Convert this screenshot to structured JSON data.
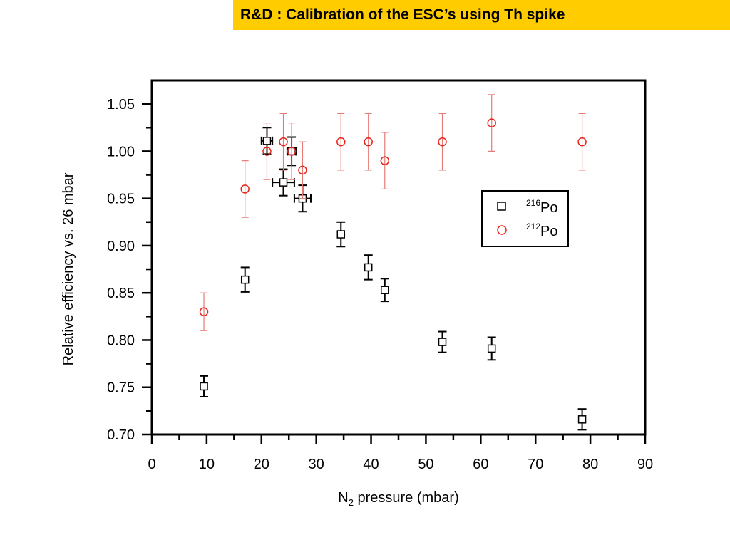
{
  "slide": {
    "title": "R&D : Calibration of the ESC’s using Th spike",
    "title_bg_color": "#ffcc00"
  },
  "chart_data": {
    "type": "scatter",
    "title": "",
    "xlabel": {
      "prefix": "N",
      "subscript": "2",
      "suffix": " pressure (mbar)"
    },
    "ylabel": "Relative efficiency vs. 26 mbar",
    "xlim": [
      0,
      90
    ],
    "ylim": [
      0.7,
      1.075
    ],
    "x_ticks": [
      0,
      10,
      20,
      30,
      40,
      50,
      60,
      70,
      80,
      90
    ],
    "x_tick_labels": [
      "0",
      "10",
      "20",
      "30",
      "40",
      "50",
      "60",
      "70",
      "80",
      "90"
    ],
    "y_ticks": [
      0.7,
      0.75,
      0.8,
      0.85,
      0.9,
      0.95,
      1.0,
      1.05
    ],
    "y_tick_labels": [
      "0.70",
      "0.75",
      "0.80",
      "0.85",
      "0.90",
      "0.95",
      "1.00",
      "1.05"
    ],
    "grid": false,
    "legend_position": "right",
    "series": [
      {
        "name": "216Po",
        "legend_sup": "216",
        "legend_text": "Po",
        "marker": "square",
        "color": "#000000",
        "error_color": "#000000",
        "points": [
          {
            "x": 9.5,
            "y": 0.751,
            "yerr": 0.011,
            "xerr": 0
          },
          {
            "x": 17.0,
            "y": 0.864,
            "yerr": 0.013,
            "xerr": 0
          },
          {
            "x": 21.0,
            "y": 1.011,
            "yerr": 0.014,
            "xerr": 1.0
          },
          {
            "x": 24.0,
            "y": 0.967,
            "yerr": 0.014,
            "xerr": 2.0
          },
          {
            "x": 25.5,
            "y": 1.0,
            "yerr": 0.015,
            "xerr": 0.8
          },
          {
            "x": 27.5,
            "y": 0.95,
            "yerr": 0.014,
            "xerr": 1.5
          },
          {
            "x": 34.5,
            "y": 0.912,
            "yerr": 0.013,
            "xerr": 0
          },
          {
            "x": 39.5,
            "y": 0.877,
            "yerr": 0.013,
            "xerr": 0
          },
          {
            "x": 42.5,
            "y": 0.853,
            "yerr": 0.012,
            "xerr": 0
          },
          {
            "x": 53.0,
            "y": 0.798,
            "yerr": 0.011,
            "xerr": 0
          },
          {
            "x": 62.0,
            "y": 0.791,
            "yerr": 0.012,
            "xerr": 0
          },
          {
            "x": 78.5,
            "y": 0.716,
            "yerr": 0.011,
            "xerr": 0
          }
        ]
      },
      {
        "name": "212Po",
        "legend_sup": "212",
        "legend_text": "Po",
        "marker": "circle",
        "color": "#e8241c",
        "error_color": "#e87a74",
        "points": [
          {
            "x": 9.5,
            "y": 0.83,
            "yerr": 0.02,
            "xerr": 0
          },
          {
            "x": 17.0,
            "y": 0.96,
            "yerr": 0.03,
            "xerr": 0
          },
          {
            "x": 21.0,
            "y": 1.0,
            "yerr": 0.03,
            "xerr": 0
          },
          {
            "x": 24.0,
            "y": 1.01,
            "yerr": 0.03,
            "xerr": 0
          },
          {
            "x": 25.5,
            "y": 1.0,
            "yerr": 0.03,
            "xerr": 0
          },
          {
            "x": 27.5,
            "y": 0.98,
            "yerr": 0.03,
            "xerr": 0
          },
          {
            "x": 34.5,
            "y": 1.01,
            "yerr": 0.03,
            "xerr": 0
          },
          {
            "x": 39.5,
            "y": 1.01,
            "yerr": 0.03,
            "xerr": 0
          },
          {
            "x": 42.5,
            "y": 0.99,
            "yerr": 0.03,
            "xerr": 0
          },
          {
            "x": 53.0,
            "y": 1.01,
            "yerr": 0.03,
            "xerr": 0
          },
          {
            "x": 62.0,
            "y": 1.03,
            "yerr": 0.03,
            "xerr": 0
          },
          {
            "x": 78.5,
            "y": 1.01,
            "yerr": 0.03,
            "xerr": 0
          }
        ]
      }
    ]
  }
}
